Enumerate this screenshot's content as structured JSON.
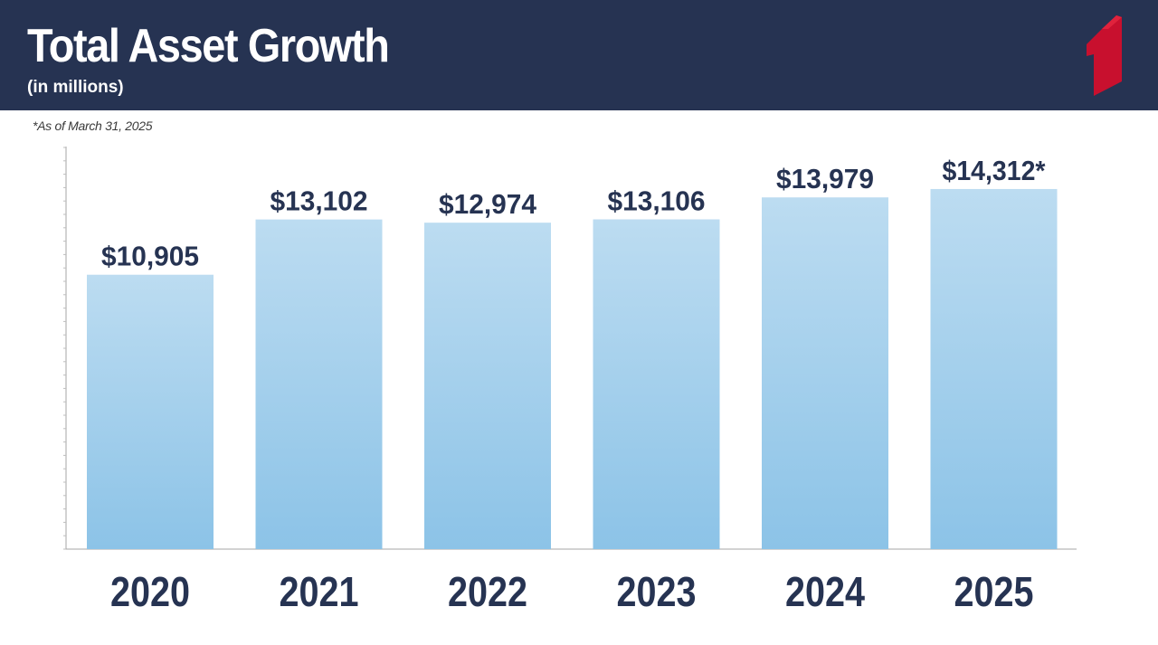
{
  "header": {
    "title": "Total Asset Growth",
    "subtitle": "(in millions)",
    "logo_icon": "red-numeral-one-logo-icon"
  },
  "note": "*As of March 31, 2025",
  "colors": {
    "header_bg": "#263352",
    "accent_red": "#c8102e",
    "bar_top": "#bcdcf1",
    "bar_bottom": "#8cc3e7",
    "text_dark": "#263352"
  },
  "chart_data": {
    "type": "bar",
    "title": "Total Asset Growth",
    "subtitle": "(in millions)",
    "categories": [
      "2020",
      "2021",
      "2022",
      "2023",
      "2024",
      "2025"
    ],
    "values": [
      10905,
      13102,
      12974,
      13106,
      13979,
      14312
    ],
    "data_labels": [
      "$10,905",
      "$13,102",
      "$12,974",
      "$13,106",
      "$13,979",
      "$14,312*"
    ],
    "xlabel": "",
    "ylabel": "",
    "ylim": [
      0,
      16000
    ],
    "grid": false,
    "legend": "none",
    "annotation": "*As of March 31, 2025"
  }
}
